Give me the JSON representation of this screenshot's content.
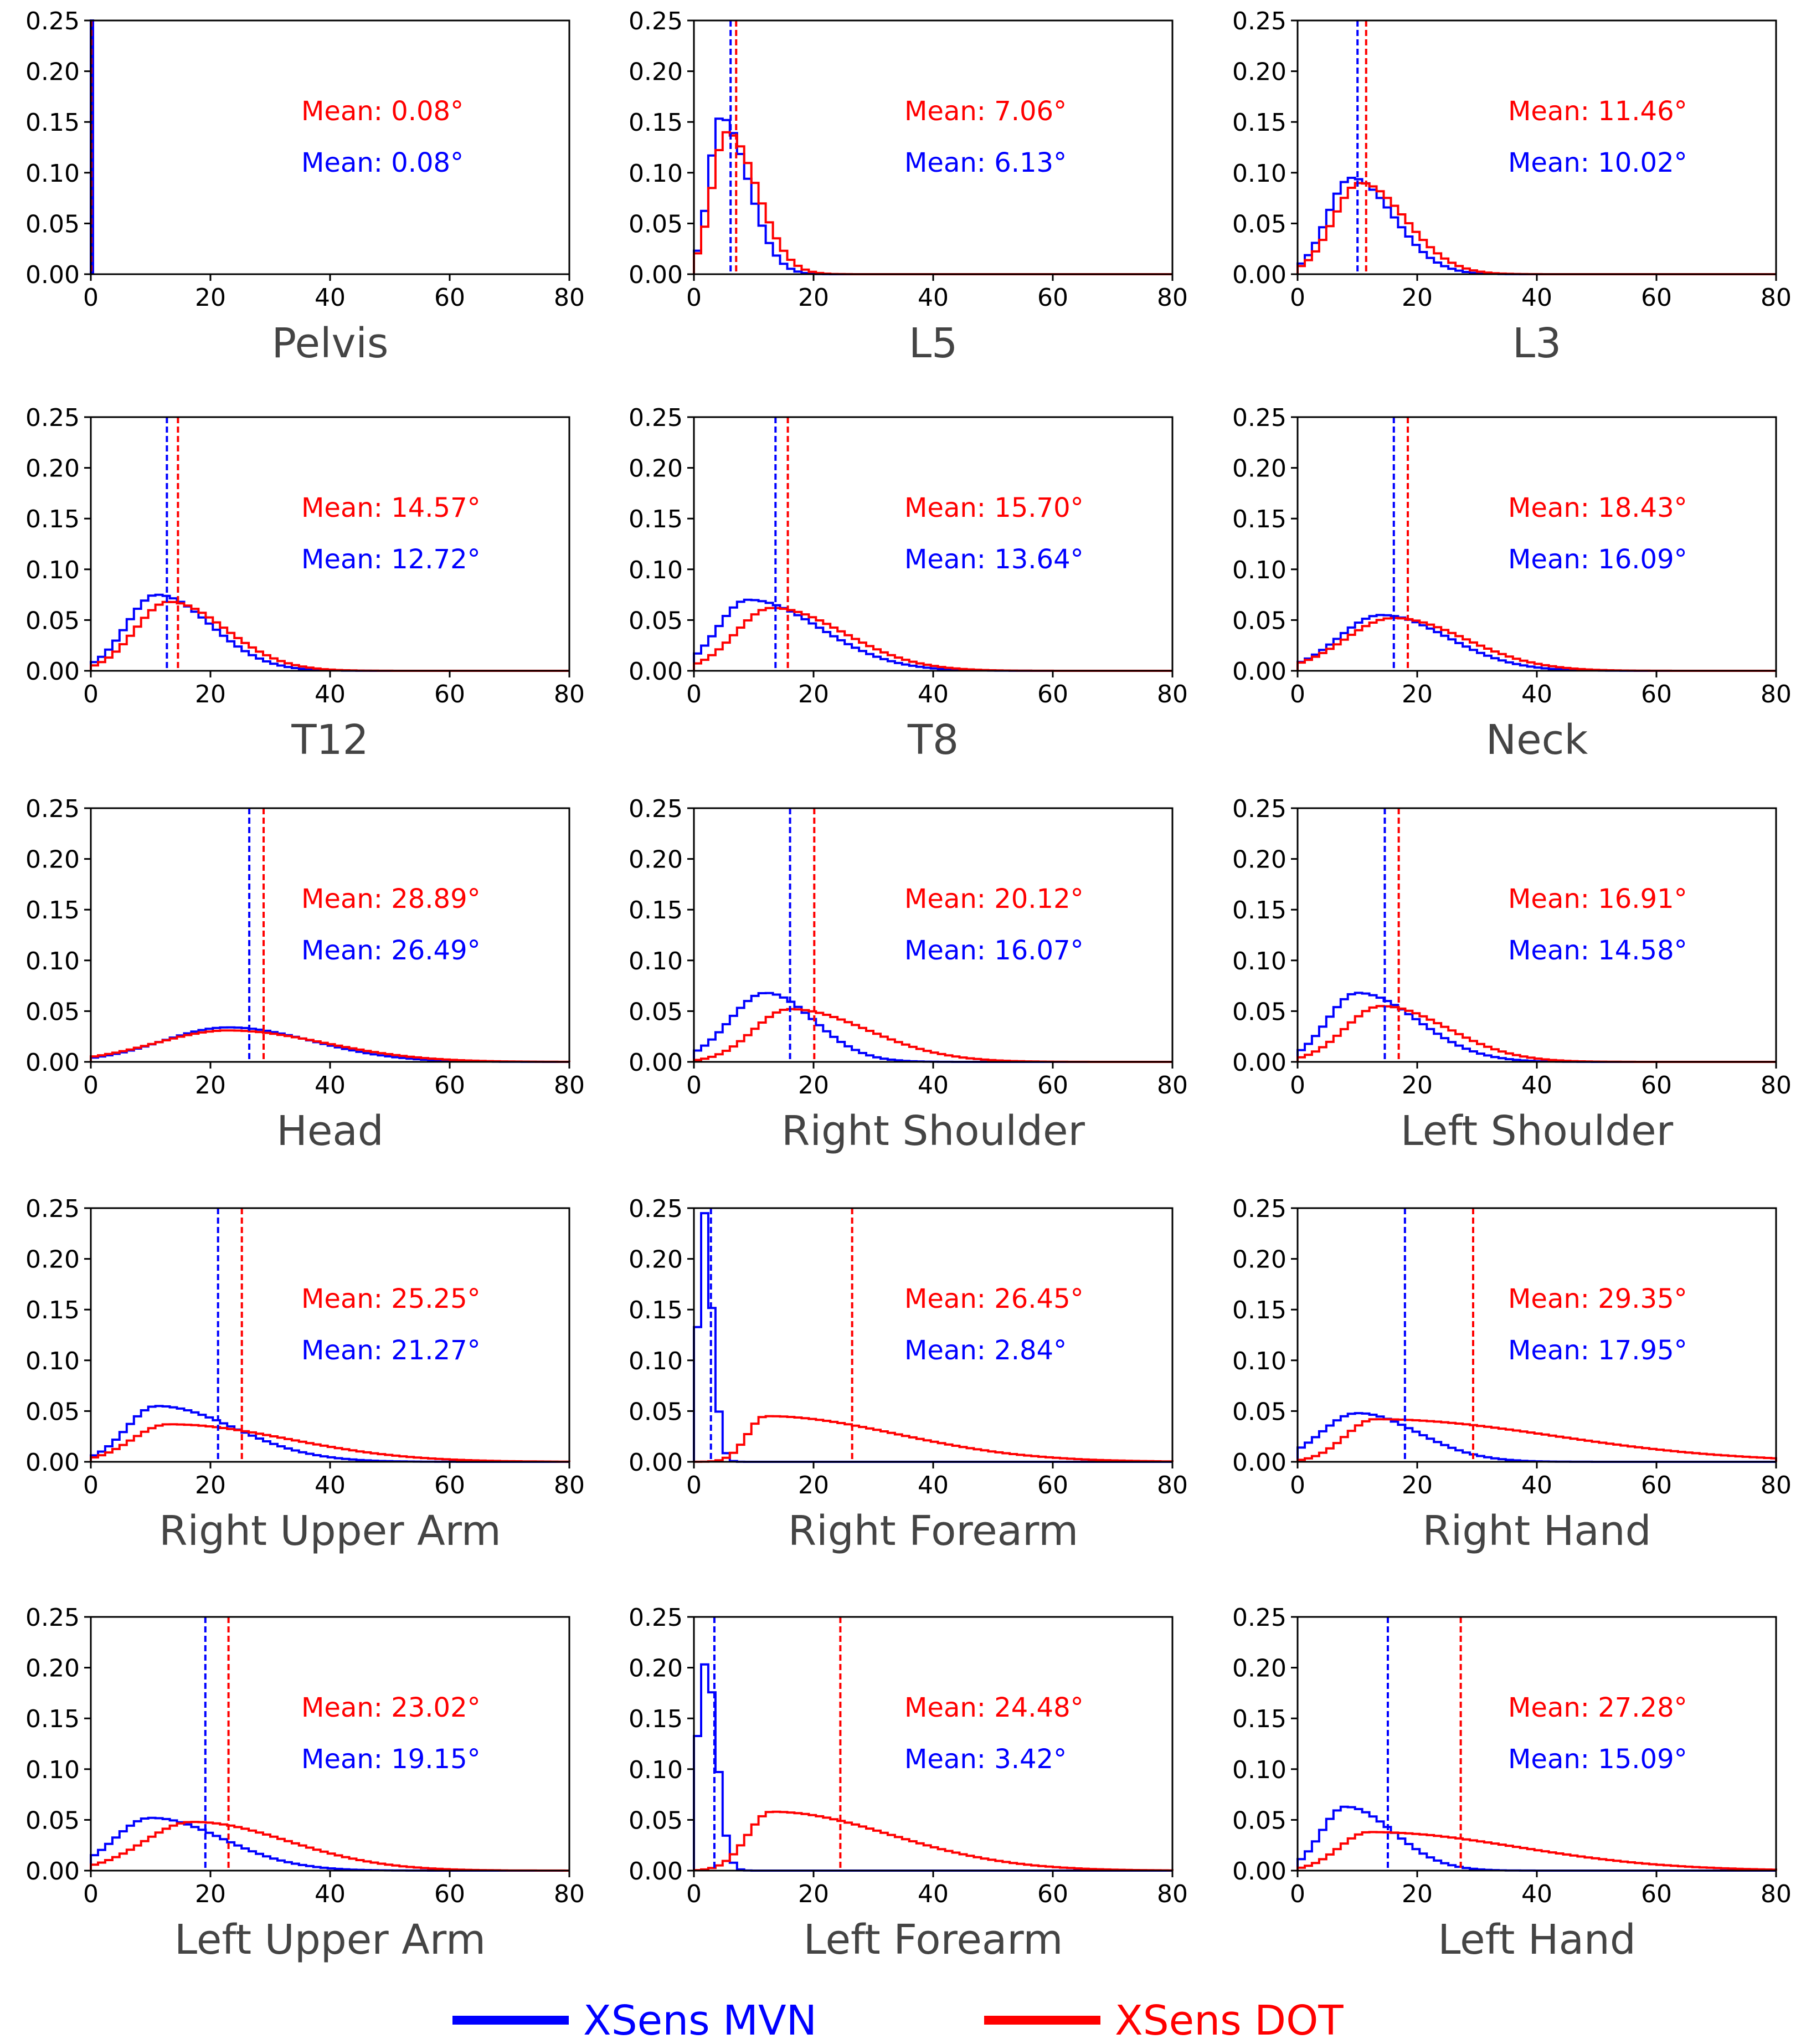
{
  "chart_data": {
    "type": "histogram",
    "x_ticks": [
      0,
      20,
      40,
      60,
      80
    ],
    "y_ticks": [
      0.0,
      0.05,
      0.1,
      0.15,
      0.2,
      0.25
    ],
    "x_tick_labels": [
      "0",
      "20",
      "40",
      "60",
      "80"
    ],
    "y_tick_labels": [
      "0.00",
      "0.05",
      "0.10",
      "0.15",
      "0.20",
      "0.25"
    ],
    "xlim": [
      0,
      80
    ],
    "ylim": [
      0,
      0.25
    ],
    "colors": {
      "mvn": "#0000ff",
      "dot": "#ff0000"
    },
    "legend": [
      {
        "name": "XSens MVN",
        "color": "#0000ff"
      },
      {
        "name": "XSens DOT",
        "color": "#ff0000"
      }
    ],
    "subplots": [
      {
        "title": "Pelvis",
        "dot_mean": 0.08,
        "mvn_mean": 0.08,
        "dot_mean_label": "Mean: 0.08°",
        "mvn_mean_label": "Mean: 0.08°",
        "dist": "spike"
      },
      {
        "title": "L5",
        "dot_mean": 7.06,
        "mvn_mean": 6.13,
        "dot_mean_label": "Mean: 7.06°",
        "mvn_mean_label": "Mean: 6.13°",
        "dist": "lognormal",
        "mvn": {
          "peak": 4.5,
          "height": 0.155,
          "left": 2.0,
          "right": 4.5
        },
        "dot": {
          "peak": 5.5,
          "height": 0.14,
          "left": 2.5,
          "right": 5.0
        }
      },
      {
        "title": "L3",
        "dot_mean": 11.46,
        "mvn_mean": 10.02,
        "dot_mean_label": "Mean: 11.46°",
        "mvn_mean_label": "Mean: 10.02°",
        "dist": "lognormal",
        "mvn": {
          "peak": 9.0,
          "height": 0.095,
          "left": 4.0,
          "right": 7.0
        },
        "dot": {
          "peak": 10.5,
          "height": 0.09,
          "left": 4.5,
          "right": 7.5
        }
      },
      {
        "title": "T12",
        "dot_mean": 14.57,
        "mvn_mean": 12.72,
        "dot_mean_label": "Mean: 14.57°",
        "mvn_mean_label": "Mean: 12.72°",
        "dist": "lognormal",
        "mvn": {
          "peak": 11.0,
          "height": 0.075,
          "left": 5.0,
          "right": 9.0
        },
        "dot": {
          "peak": 13.0,
          "height": 0.068,
          "left": 5.5,
          "right": 9.5
        }
      },
      {
        "title": "T8",
        "dot_mean": 15.7,
        "mvn_mean": 13.64,
        "dot_mean_label": "Mean: 15.70°",
        "mvn_mean_label": "Mean: 13.64°",
        "dist": "lognormal",
        "mvn": {
          "peak": 9.0,
          "height": 0.07,
          "left": 5.0,
          "right": 12.0
        },
        "dot": {
          "peak": 13.0,
          "height": 0.062,
          "left": 6.0,
          "right": 12.0
        }
      },
      {
        "title": "Neck",
        "dot_mean": 18.43,
        "mvn_mean": 16.09,
        "dot_mean_label": "Mean: 18.43°",
        "mvn_mean_label": "Mean: 16.09°",
        "dist": "lognormal",
        "mvn": {
          "peak": 14.0,
          "height": 0.055,
          "left": 7.0,
          "right": 11.0
        },
        "dot": {
          "peak": 16.0,
          "height": 0.052,
          "left": 8.0,
          "right": 12.0
        }
      },
      {
        "title": "Head",
        "dot_mean": 28.89,
        "mvn_mean": 26.49,
        "dot_mean_label": "Mean: 28.89°",
        "mvn_mean_label": "Mean: 26.49°",
        "dist": "lognormal",
        "mvn": {
          "peak": 23.0,
          "height": 0.034,
          "left": 11.0,
          "right": 14.0
        },
        "dot": {
          "peak": 23.0,
          "height": 0.031,
          "left": 12.0,
          "right": 16.0
        }
      },
      {
        "title": "Right Shoulder",
        "dot_mean": 20.12,
        "mvn_mean": 16.07,
        "dot_mean_label": "Mean: 20.12°",
        "mvn_mean_label": "Mean: 16.07°",
        "dist": "lognormal",
        "mvn": {
          "peak": 12.0,
          "height": 0.068,
          "left": 6.0,
          "right": 8.0
        },
        "dot": {
          "peak": 16.0,
          "height": 0.052,
          "left": 6.0,
          "right": 13.0
        }
      },
      {
        "title": "Left Shoulder",
        "dot_mean": 16.91,
        "mvn_mean": 14.58,
        "dot_mean_label": "Mean: 16.91°",
        "mvn_mean_label": "Mean: 14.58°",
        "dist": "lognormal",
        "mvn": {
          "peak": 10.0,
          "height": 0.068,
          "left": 5.0,
          "right": 10.0
        },
        "dot": {
          "peak": 14.0,
          "height": 0.055,
          "left": 6.0,
          "right": 11.0
        }
      },
      {
        "title": "Right Upper Arm",
        "dot_mean": 25.25,
        "mvn_mean": 21.27,
        "dot_mean_label": "Mean: 25.25°",
        "mvn_mean_label": "Mean: 21.27°",
        "dist": "lognormal",
        "mvn": {
          "peak": 11.0,
          "height": 0.055,
          "left": 5.0,
          "right": 13.0
        },
        "dot": {
          "peak": 13.0,
          "height": 0.037,
          "left": 6.0,
          "right": 20.0
        }
      },
      {
        "title": "Right Forearm",
        "dot_mean": 26.45,
        "mvn_mean": 2.84,
        "dot_mean_label": "Mean: 26.45°",
        "mvn_mean_label": "Mean: 2.84°",
        "dist": "lognormal",
        "mvn": {
          "peak": 1.5,
          "height": 0.25,
          "left": 0.8,
          "right": 1.5
        },
        "dot": {
          "peak": 12.0,
          "height": 0.045,
          "left": 3.0,
          "right": 22.0
        }
      },
      {
        "title": "Right Hand",
        "dot_mean": 29.35,
        "mvn_mean": 17.95,
        "dot_mean_label": "Mean: 29.35°",
        "mvn_mean_label": "Mean: 17.95°",
        "dist": "lognormal",
        "mvn": {
          "peak": 10.0,
          "height": 0.048,
          "left": 6.0,
          "right": 10.0
        },
        "dot": {
          "peak": 13.0,
          "height": 0.042,
          "left": 5.0,
          "right": 30.0
        }
      },
      {
        "title": "Left Upper Arm",
        "dot_mean": 23.02,
        "mvn_mean": 19.15,
        "dot_mean_label": "Mean: 23.02°",
        "mvn_mean_label": "Mean: 19.15°",
        "dist": "lognormal",
        "mvn": {
          "peak": 10.0,
          "height": 0.052,
          "left": 6.0,
          "right": 12.0
        },
        "dot": {
          "peak": 17.0,
          "height": 0.048,
          "left": 8.0,
          "right": 16.0
        }
      },
      {
        "title": "Left Forearm",
        "dot_mean": 24.48,
        "mvn_mean": 3.42,
        "dot_mean_label": "Mean: 24.48°",
        "mvn_mean_label": "Mean: 3.42°",
        "dist": "lognormal",
        "mvn": {
          "peak": 2.0,
          "height": 0.205,
          "left": 1.5,
          "right": 1.8
        },
        "dot": {
          "peak": 13.0,
          "height": 0.058,
          "left": 4.0,
          "right": 20.0
        }
      },
      {
        "title": "Left Hand",
        "dot_mean": 27.28,
        "mvn_mean": 15.09,
        "dot_mean_label": "Mean: 27.28°",
        "mvn_mean_label": "Mean: 15.09°",
        "dist": "lognormal",
        "mvn": {
          "peak": 8.0,
          "height": 0.063,
          "left": 4.0,
          "right": 8.0
        },
        "dot": {
          "peak": 12.0,
          "height": 0.038,
          "left": 5.0,
          "right": 25.0
        }
      }
    ]
  }
}
